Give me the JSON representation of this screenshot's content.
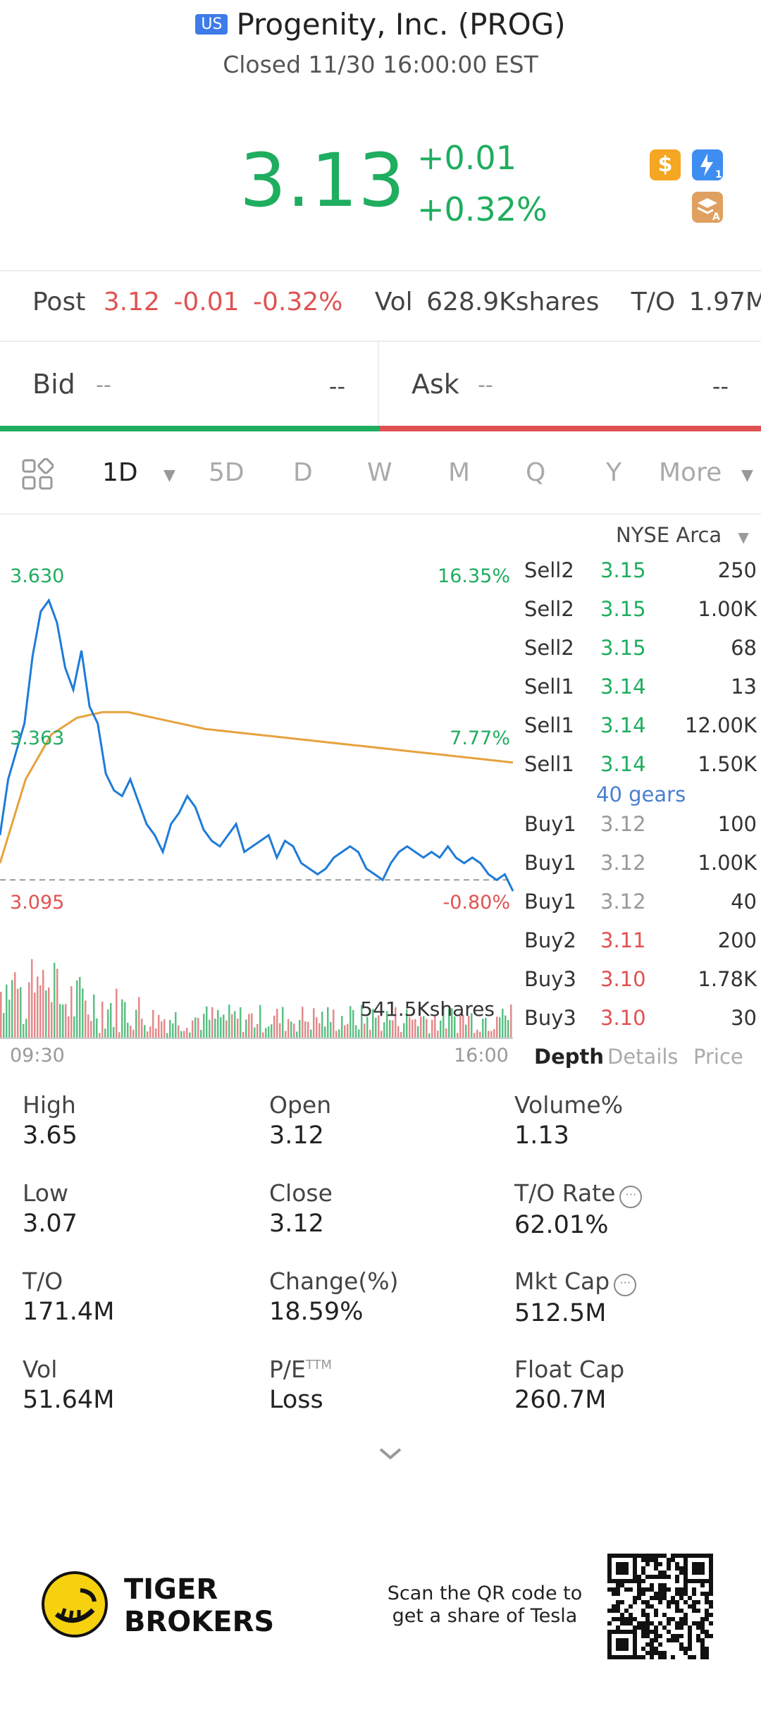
{
  "header": {
    "flag": "US",
    "title": "Progenity, Inc. (PROG)",
    "status": "Closed 11/30 16:00:00 EST"
  },
  "quote": {
    "price": "3.13",
    "change": "+0.01",
    "change_pct": "+0.32%",
    "badges": [
      "dollar-icon",
      "lightning-level-1-icon",
      "layers-a-icon"
    ]
  },
  "post": {
    "label": "Post",
    "price": "3.12",
    "change": "-0.01",
    "change_pct": "-0.32%",
    "vol_label": "Vol",
    "vol_value": "628.9Kshares",
    "to_label": "T/O",
    "to_value": "1.97M"
  },
  "bid_ask": {
    "bid_label": "Bid",
    "bid_price": "--",
    "bid_qty": "--",
    "ask_label": "Ask",
    "ask_price": "--",
    "ask_qty": "--"
  },
  "tabs": {
    "active": "1D",
    "items": [
      "5D",
      "D",
      "W",
      "M",
      "Q",
      "Y"
    ],
    "more": "More"
  },
  "exchange": "NYSE Arca",
  "chart_data": {
    "type": "line",
    "series": [
      {
        "name": "",
        "description": "price",
        "color": "#1e7bd8",
        "values": [
          3.2,
          3.3,
          3.35,
          3.4,
          3.52,
          3.6,
          3.62,
          3.58,
          3.5,
          3.46,
          3.53,
          3.43,
          3.4,
          3.31,
          3.28,
          3.27,
          3.3,
          3.26,
          3.22,
          3.2,
          3.17,
          3.22,
          3.24,
          3.27,
          3.25,
          3.21,
          3.19,
          3.18,
          3.2,
          3.22,
          3.17,
          3.18,
          3.19,
          3.2,
          3.16,
          3.19,
          3.18,
          3.15,
          3.14,
          3.13,
          3.14,
          3.16,
          3.17,
          3.18,
          3.17,
          3.14,
          3.13,
          3.12,
          3.15,
          3.17,
          3.18,
          3.17,
          3.16,
          3.17,
          3.16,
          3.18,
          3.16,
          3.15,
          3.16,
          3.15,
          3.13,
          3.12,
          3.13,
          3.1
        ]
      },
      {
        "name": "",
        "description": "average",
        "color": "#e6a23c",
        "values": [
          3.15,
          3.3,
          3.38,
          3.41,
          3.42,
          3.42,
          3.41,
          3.4,
          3.39,
          3.385,
          3.38,
          3.375,
          3.37,
          3.365,
          3.36,
          3.355,
          3.35,
          3.345,
          3.34,
          3.335,
          3.33
        ]
      }
    ],
    "y_labels": {
      "high": "3.630",
      "mid": "3.363",
      "low": "3.095"
    },
    "pct_labels": {
      "high": "16.35%",
      "mid": "7.77%",
      "low": "-0.80%"
    },
    "ylim": [
      3.08,
      3.66
    ],
    "prev_close": 3.12,
    "x_labels": {
      "start": "09:30",
      "end": "16:00"
    },
    "volume_label": "541.5Kshares"
  },
  "order_book": {
    "sell": [
      {
        "label": "Sell2",
        "price": "3.15",
        "qty": "250"
      },
      {
        "label": "Sell2",
        "price": "3.15",
        "qty": "1.00K"
      },
      {
        "label": "Sell2",
        "price": "3.15",
        "qty": "68"
      },
      {
        "label": "Sell1",
        "price": "3.14",
        "qty": "13"
      },
      {
        "label": "Sell1",
        "price": "3.14",
        "qty": "12.00K"
      },
      {
        "label": "Sell1",
        "price": "3.14",
        "qty": "1.50K"
      }
    ],
    "gears": "40 gears",
    "buy": [
      {
        "label": "Buy1",
        "price": "3.12",
        "qty": "100"
      },
      {
        "label": "Buy1",
        "price": "3.12",
        "qty": "1.00K"
      },
      {
        "label": "Buy1",
        "price": "3.12",
        "qty": "40"
      },
      {
        "label": "Buy2",
        "price": "3.11",
        "qty": "200"
      },
      {
        "label": "Buy3",
        "price": "3.10",
        "qty": "1.78K"
      },
      {
        "label": "Buy3",
        "price": "3.10",
        "qty": "30"
      }
    ],
    "tabs": [
      "Depth",
      "Details",
      "Price"
    ]
  },
  "stats": [
    {
      "label": "High",
      "value": "3.65"
    },
    {
      "label": "Open",
      "value": "3.12"
    },
    {
      "label": "Volume%",
      "value": "1.13"
    },
    {
      "label": "Low",
      "value": "3.07"
    },
    {
      "label": "Close",
      "value": "3.12"
    },
    {
      "label": "T/O Rate",
      "value": "62.01%"
    },
    {
      "label": "T/O",
      "value": "171.4M"
    },
    {
      "label": "Change(%)",
      "value": "18.59%"
    },
    {
      "label": "Mkt Cap",
      "value": "512.5M"
    },
    {
      "label": "Vol",
      "value": "51.64M"
    },
    {
      "label": "P/E",
      "value": "Loss"
    },
    {
      "label": "Float Cap",
      "value": "260.7M"
    }
  ],
  "pe_superscript": "TTM",
  "footer": {
    "brand_line1": "TIGER",
    "brand_line2": "BROKERS",
    "promo_line1": "Scan the QR code to",
    "promo_line2": "get a share of Tesla"
  }
}
